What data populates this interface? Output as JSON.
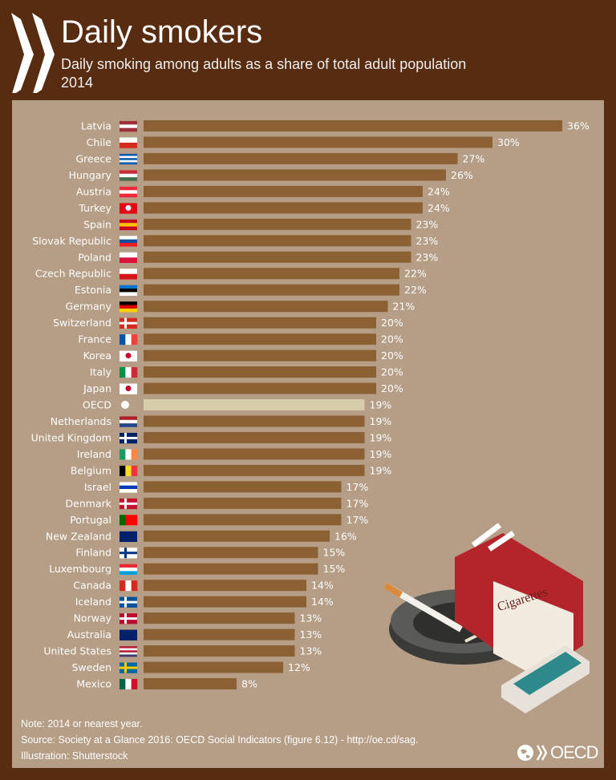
{
  "header": {
    "title": "Daily smokers",
    "subtitle": "Daily smoking among adults as a share of total adult population",
    "year": "2014"
  },
  "chart_data": {
    "type": "bar",
    "orientation": "horizontal",
    "unit": "%",
    "categories": [
      "Latvia",
      "Chile",
      "Greece",
      "Hungary",
      "Austria",
      "Turkey",
      "Spain",
      "Slovak Republic",
      "Poland",
      "Czech Republic",
      "Estonia",
      "Germany",
      "Switzerland",
      "France",
      "Korea",
      "Italy",
      "Japan",
      "OECD",
      "Netherlands",
      "United Kingdom",
      "Ireland",
      "Belgium",
      "Israel",
      "Denmark",
      "Portugal",
      "New Zealand",
      "Finland",
      "Luxembourg",
      "Canada",
      "Iceland",
      "Norway",
      "Australia",
      "United States",
      "Sweden",
      "Mexico"
    ],
    "values": [
      36,
      30,
      27,
      26,
      24,
      24,
      23,
      23,
      23,
      22,
      22,
      21,
      20,
      20,
      20,
      20,
      20,
      19,
      19,
      19,
      19,
      19,
      17,
      17,
      17,
      16,
      15,
      15,
      14,
      14,
      13,
      13,
      13,
      12,
      8
    ],
    "value_labels": [
      "36%",
      "30%",
      "27%",
      "26%",
      "24%",
      "24%",
      "23%",
      "23%",
      "23%",
      "22%",
      "22%",
      "21%",
      "20%",
      "20%",
      "20%",
      "20%",
      "20%",
      "19%",
      "19%",
      "19%",
      "19%",
      "19%",
      "17%",
      "17%",
      "17%",
      "16%",
      "15%",
      "15%",
      "14%",
      "14%",
      "13%",
      "13%",
      "13%",
      "12%",
      "8%"
    ],
    "highlight": "OECD",
    "colors": {
      "bar": "#8b6134",
      "highlight": "#d6ccaa",
      "background": "#572c11",
      "panel": "#b59d86"
    },
    "xlim": [
      0,
      36
    ],
    "grid": false,
    "legend": "none"
  },
  "illustration": {
    "pack_label": "Cigarettes"
  },
  "footer": {
    "note": "Note: 2014 or nearest year.",
    "source": "Source: Society at a Glance 2016: OECD Social Indicators (figure 6.12) - http://oe.cd/sag.",
    "illustration": "Illustration: Shutterstock",
    "brand": "OECD"
  }
}
